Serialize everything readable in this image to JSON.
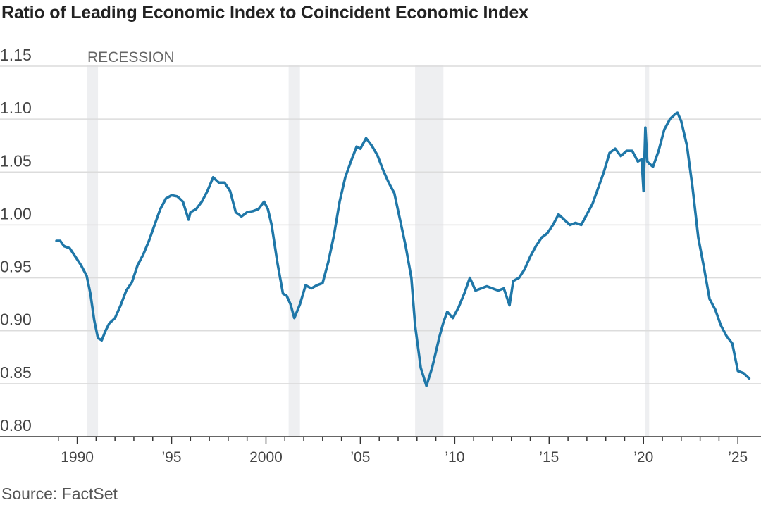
{
  "title": "Ratio of Leading Economic Index to Coincident Economic Index",
  "source": "Source: FactSet",
  "colors": {
    "line": "#1f77a8",
    "recession": "#eeeff1",
    "grid": "#dcdcdc",
    "axis": "#333333"
  },
  "chart_data": {
    "type": "line",
    "title": "Ratio of Leading Economic Index to Coincident Economic Index",
    "xlabel": "",
    "ylabel": "",
    "ylim": [
      0.8,
      1.15
    ],
    "xlim": [
      1988.0,
      2026.0
    ],
    "grid": "horizontal",
    "yticks": [
      0.8,
      0.85,
      0.9,
      0.95,
      1.0,
      1.05,
      1.1,
      1.15
    ],
    "ytick_labels": [
      "0.80",
      "0.85",
      "0.90",
      "0.95",
      "1.00",
      "1.05",
      "1.10",
      "1.15"
    ],
    "xticks": [
      1990,
      1995,
      2000,
      2005,
      2010,
      2015,
      2020,
      2025
    ],
    "xtick_labels": [
      "1990",
      "’95",
      "2000",
      "’05",
      "’10",
      "’15",
      "’20",
      "’25"
    ],
    "recession_label": "RECESSION",
    "recessions": [
      [
        1990.5,
        1991.1
      ],
      [
        2001.2,
        2001.8
      ],
      [
        2007.9,
        2009.4
      ],
      [
        2020.1,
        2020.3
      ]
    ],
    "series": [
      {
        "x": [
          1988.9,
          1989.1,
          1989.3,
          1989.6,
          1989.9,
          1990.2,
          1990.5,
          1990.7,
          1990.9,
          1991.1,
          1991.3,
          1991.5,
          1991.7,
          1992.0,
          1992.3,
          1992.6,
          1992.9,
          1993.2,
          1993.5,
          1993.8,
          1994.1,
          1994.4,
          1994.7,
          1995.0,
          1995.3,
          1995.6,
          1995.9,
          1996.0,
          1996.3,
          1996.6,
          1996.9,
          1997.2,
          1997.5,
          1997.8,
          1998.1,
          1998.4,
          1998.7,
          1999.0,
          1999.3,
          1999.6,
          1999.9,
          2000.1,
          2000.3,
          2000.6,
          2000.9,
          2001.1,
          2001.3,
          2001.5,
          2001.8,
          2002.1,
          2002.4,
          2002.7,
          2003.0,
          2003.3,
          2003.6,
          2003.9,
          2004.2,
          2004.5,
          2004.8,
          2005.0,
          2005.3,
          2005.6,
          2005.9,
          2006.2,
          2006.5,
          2006.8,
          2007.1,
          2007.4,
          2007.7,
          2007.9,
          2008.2,
          2008.5,
          2008.8,
          2009.0,
          2009.2,
          2009.4,
          2009.6,
          2009.9,
          2010.2,
          2010.5,
          2010.8,
          2011.1,
          2011.4,
          2011.7,
          2012.0,
          2012.3,
          2012.6,
          2012.9,
          2013.1,
          2013.4,
          2013.7,
          2014.0,
          2014.3,
          2014.6,
          2014.9,
          2015.2,
          2015.5,
          2015.8,
          2016.1,
          2016.4,
          2016.7,
          2017.0,
          2017.3,
          2017.6,
          2017.9,
          2018.2,
          2018.5,
          2018.8,
          2019.1,
          2019.4,
          2019.7,
          2019.9,
          2020.0,
          2020.1,
          2020.2,
          2020.3,
          2020.5,
          2020.8,
          2021.1,
          2021.4,
          2021.7,
          2021.8,
          2022.0,
          2022.3,
          2022.6,
          2022.9,
          2023.2,
          2023.5,
          2023.8,
          2024.1,
          2024.4,
          2024.7,
          2025.0,
          2025.3,
          2025.6
        ],
        "y": [
          0.985,
          0.985,
          0.98,
          0.978,
          0.97,
          0.962,
          0.952,
          0.935,
          0.91,
          0.893,
          0.891,
          0.9,
          0.907,
          0.912,
          0.924,
          0.938,
          0.946,
          0.962,
          0.972,
          0.985,
          1.0,
          1.015,
          1.025,
          1.028,
          1.027,
          1.022,
          1.005,
          1.012,
          1.015,
          1.022,
          1.032,
          1.045,
          1.04,
          1.04,
          1.032,
          1.012,
          1.008,
          1.012,
          1.013,
          1.015,
          1.022,
          1.015,
          1.0,
          0.965,
          0.935,
          0.933,
          0.925,
          0.912,
          0.925,
          0.943,
          0.94,
          0.943,
          0.945,
          0.965,
          0.99,
          1.022,
          1.045,
          1.06,
          1.074,
          1.072,
          1.082,
          1.075,
          1.066,
          1.052,
          1.04,
          1.03,
          1.005,
          0.98,
          0.95,
          0.905,
          0.865,
          0.848,
          0.865,
          0.88,
          0.895,
          0.908,
          0.918,
          0.912,
          0.922,
          0.935,
          0.95,
          0.938,
          0.94,
          0.942,
          0.94,
          0.938,
          0.94,
          0.924,
          0.947,
          0.95,
          0.958,
          0.97,
          0.98,
          0.988,
          0.992,
          1.0,
          1.01,
          1.005,
          1.0,
          1.002,
          1.0,
          1.01,
          1.02,
          1.035,
          1.05,
          1.068,
          1.072,
          1.065,
          1.07,
          1.07,
          1.06,
          1.062,
          1.032,
          1.092,
          1.06,
          1.058,
          1.055,
          1.07,
          1.09,
          1.1,
          1.105,
          1.106,
          1.098,
          1.075,
          1.035,
          0.988,
          0.96,
          0.93,
          0.92,
          0.905,
          0.895,
          0.888,
          0.862,
          0.86,
          0.855
        ]
      }
    ]
  }
}
